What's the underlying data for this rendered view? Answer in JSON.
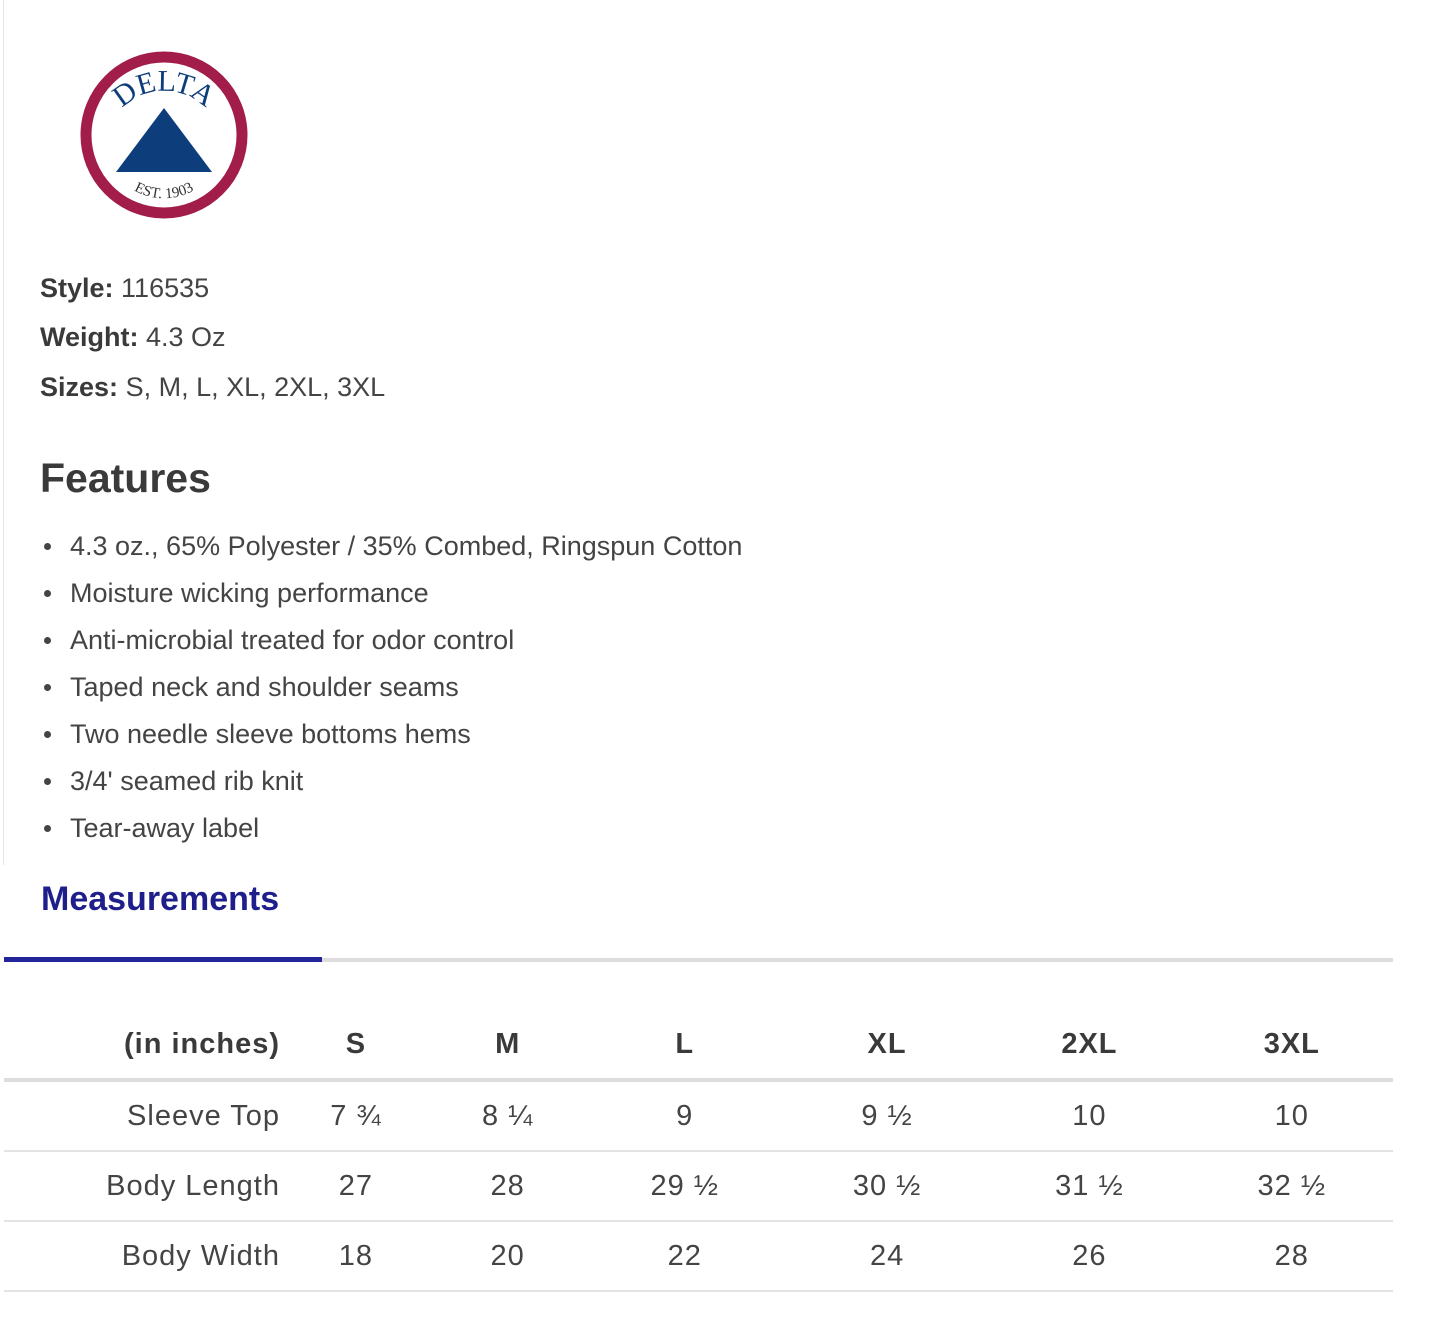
{
  "logo": {
    "text": "DELTA",
    "subtext": "EST. 1903",
    "ring_color": "#a31d4a",
    "triangle_color": "#0d3d7a"
  },
  "specs": [
    {
      "label": "Style:",
      "value": "116535"
    },
    {
      "label": "Weight:",
      "value": "4.3 Oz"
    },
    {
      "label": "Sizes:",
      "value": "S, M, L, XL, 2XL, 3XL"
    }
  ],
  "features": {
    "title": "Features",
    "items": [
      "4.3 oz., 65% Polyester / 35% Combed, Ringspun Cotton",
      "Moisture wicking performance",
      "Anti-microbial treated for odor control",
      "Taped neck and shoulder seams",
      "Two needle sleeve bottoms hems",
      "3/4' seamed rib knit",
      "Tear-away label"
    ]
  },
  "measurements": {
    "tab": "Measurements",
    "headers": [
      "(in inches)",
      "S",
      "M",
      "L",
      "XL",
      "2XL",
      "3XL"
    ],
    "rows": [
      [
        "Sleeve Top",
        "7 ¾",
        "8 ¼",
        "9",
        "9 ½",
        "10",
        "10"
      ],
      [
        "Body Length",
        "27",
        "28",
        "29 ½",
        "30 ½",
        "31 ½",
        "32 ½"
      ],
      [
        "Body Width",
        "18",
        "20",
        "22",
        "24",
        "26",
        "28"
      ]
    ]
  }
}
